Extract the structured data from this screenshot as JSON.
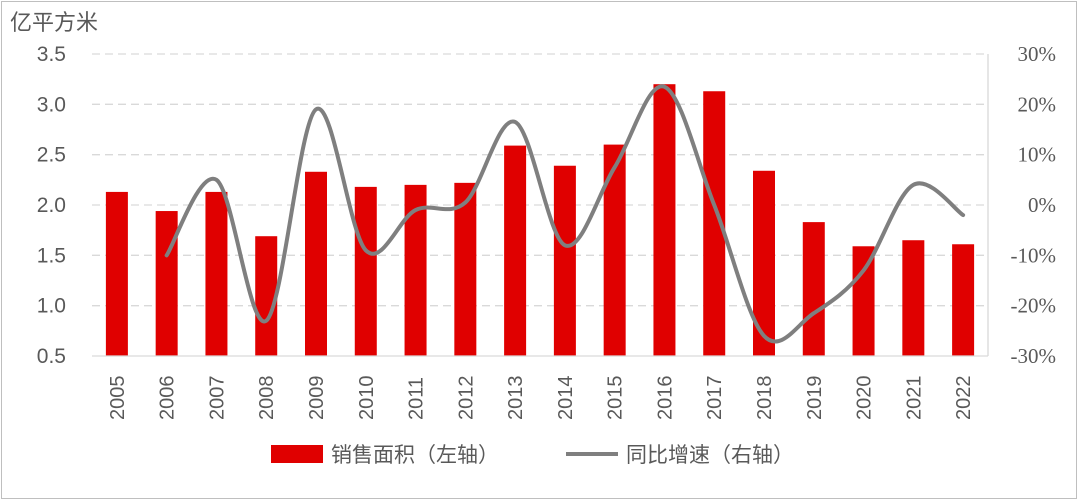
{
  "chart_data": {
    "type": "bar+line",
    "left_axis_unit": "亿平方米",
    "left_ylim": [
      0.5,
      3.5
    ],
    "left_ticks": [
      "0.5",
      "1.0",
      "1.5",
      "2.0",
      "2.5",
      "3.0",
      "3.5"
    ],
    "right_ylim": [
      -30,
      30
    ],
    "right_ticks": [
      "-30%",
      "-20%",
      "-10%",
      "0%",
      "10%",
      "20%",
      "30%"
    ],
    "grid": "horizontal-dashed",
    "legend_position": "bottom-center",
    "categories": [
      "2005",
      "2006",
      "2007",
      "2008",
      "2009",
      "2010",
      "2011",
      "2012",
      "2013",
      "2014",
      "2015",
      "2016",
      "2017",
      "2018",
      "2019",
      "2020",
      "2021",
      "2022"
    ],
    "series": [
      {
        "name": "销售面积（左轴）",
        "type": "bar",
        "axis": "left",
        "color": "#e00000",
        "values": [
          2.13,
          1.94,
          2.13,
          1.69,
          2.33,
          2.18,
          2.2,
          2.22,
          2.59,
          2.39,
          2.6,
          3.2,
          3.13,
          2.34,
          1.83,
          1.59,
          1.65,
          1.61
        ]
      },
      {
        "name": "同比增速（右轴）",
        "type": "line",
        "axis": "right",
        "color": "#7f7f7f",
        "values": [
          null,
          -10.0,
          5.0,
          -23.0,
          19.0,
          -9.0,
          -1.0,
          0.5,
          16.5,
          -8.0,
          7.5,
          23.5,
          0.0,
          -26.0,
          -21.5,
          -13.0,
          4.0,
          -2.0
        ]
      }
    ]
  }
}
